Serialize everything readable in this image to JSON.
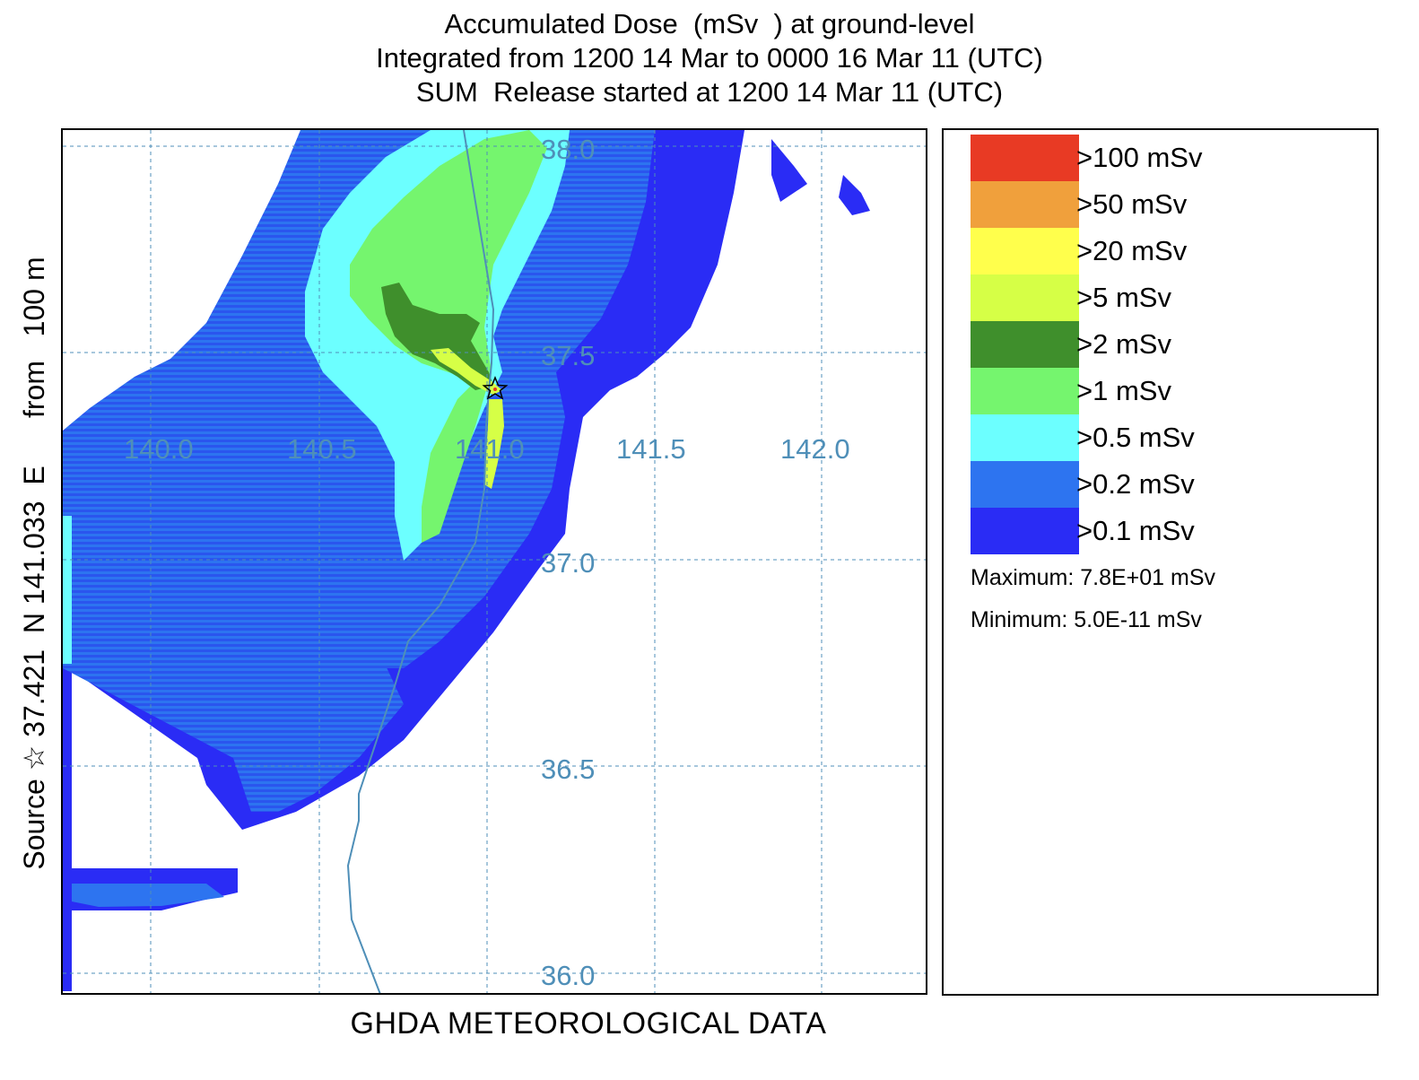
{
  "title": {
    "line1": "Accumulated Dose  (mSv  ) at ground-level",
    "line2": "Integrated from 1200 14 Mar to 0000 16 Mar 11 (UTC)",
    "line3": "SUM  Release started at 1200 14 Mar 11 (UTC)"
  },
  "side_label": "Source ☆ 37.421  N 141.033  E      from   100 m",
  "footer": "GHDA METEOROLOGICAL DATA",
  "map": {
    "longitude_labels": [
      "140.0",
      "140.5",
      "141.0",
      "141.5",
      "142.0"
    ],
    "latitude_labels": [
      "38.0",
      "37.5",
      "37.0",
      "36.5",
      "36.0"
    ],
    "source_marker": "star-icon",
    "colors": {
      "gridline": "#4f8fb8",
      "coastline": "#4f8fb8"
    }
  },
  "legend": {
    "items": [
      {
        "label": ">100 mSv",
        "color": "#e83a24"
      },
      {
        "label": ">50 mSv",
        "color": "#f0a03c"
      },
      {
        "label": ">20 mSv",
        "color": "#ffff4c"
      },
      {
        "label": ">5 mSv",
        "color": "#d6ff46"
      },
      {
        "label": ">2 mSv",
        "color": "#3f8f2c"
      },
      {
        "label": ">1 mSv",
        "color": "#75f56e"
      },
      {
        "label": ">0.5 mSv",
        "color": "#6cffff"
      },
      {
        "label": ">0.2 mSv",
        "color": "#2d74f0"
      },
      {
        "label": ">0.1 mSv",
        "color": "#2a2cf5"
      }
    ],
    "maximum": "Maximum: 7.8E+01 mSv",
    "minimum": "Minimum: 5.0E-11 mSv"
  }
}
